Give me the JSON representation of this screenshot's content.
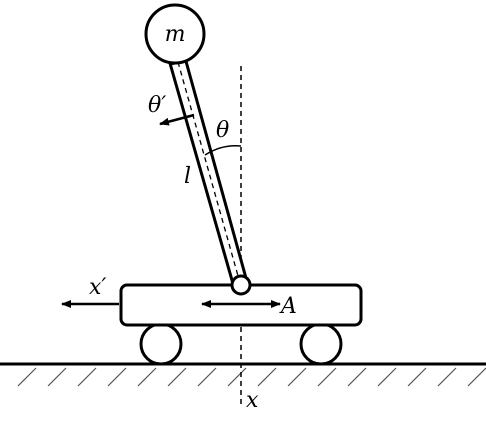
{
  "labels": {
    "mass": "m",
    "angular_velocity": "θ′",
    "angle": "θ",
    "length": "l",
    "cart_velocity": "x′",
    "actuator": "A",
    "position": "x"
  }
}
